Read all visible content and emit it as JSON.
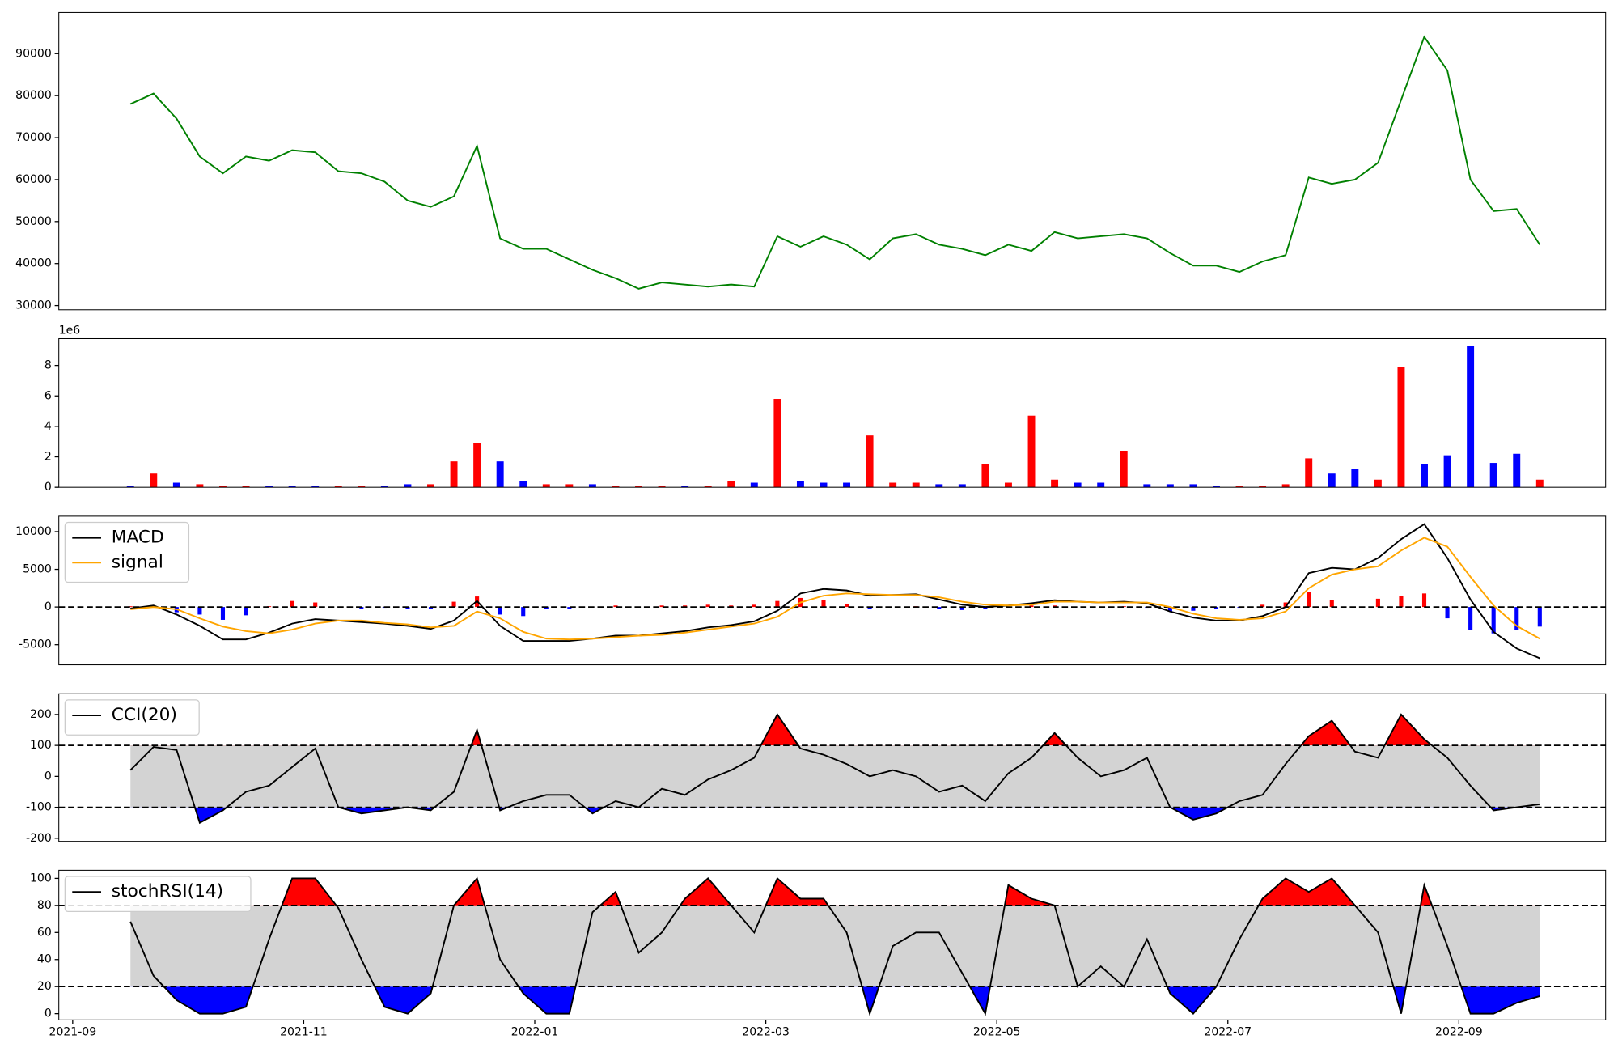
{
  "chart_data": [
    {
      "type": "line",
      "x": [
        0.5,
        0.7,
        0.9,
        1.1,
        1.3,
        1.5,
        1.7,
        1.9,
        2.1,
        2.3,
        2.5,
        2.7,
        2.9,
        3.1,
        3.3,
        3.5,
        3.7,
        3.9,
        4.1,
        4.3,
        4.5,
        4.7,
        4.9,
        5.1,
        5.3,
        5.5,
        5.7,
        5.9,
        6.1,
        6.3,
        6.5,
        6.7,
        6.9,
        7.1,
        7.3,
        7.5,
        7.7,
        7.9,
        8.1,
        8.3,
        8.5,
        8.7,
        8.9,
        9.1,
        9.3,
        9.5,
        9.7,
        9.9,
        10.1,
        10.3,
        10.5,
        10.7,
        10.9,
        11.1,
        11.3,
        11.5,
        11.7,
        11.9,
        12.1,
        12.3,
        12.5,
        12.7
      ],
      "values": [
        78000,
        80500,
        74500,
        65500,
        61500,
        65500,
        64500,
        67000,
        66500,
        62000,
        61500,
        59500,
        55000,
        53500,
        56000,
        68000,
        46000,
        43500,
        43500,
        41000,
        38500,
        36500,
        34000,
        35500,
        35000,
        34500,
        35000,
        34500,
        46500,
        44000,
        46500,
        44500,
        41000,
        46000,
        47000,
        44500,
        43500,
        42000,
        44500,
        43000,
        47500,
        46000,
        46500,
        47000,
        46000,
        42500,
        39500,
        39500,
        38000,
        40500,
        42000,
        60500,
        59000,
        60000,
        64000,
        79000,
        94000,
        86000,
        60000,
        52500,
        53000,
        44500
      ],
      "color": "green",
      "xlim": [
        -0.12,
        13.27
      ],
      "ylim": [
        29000,
        99800
      ],
      "yticks": [
        30000,
        40000,
        50000,
        60000,
        70000,
        80000,
        90000
      ]
    },
    {
      "type": "bar",
      "x": [
        0.5,
        0.7,
        0.9,
        1.1,
        1.3,
        1.5,
        1.7,
        1.9,
        2.1,
        2.3,
        2.5,
        2.7,
        2.9,
        3.1,
        3.3,
        3.5,
        3.7,
        3.9,
        4.1,
        4.3,
        4.5,
        4.7,
        4.9,
        5.1,
        5.3,
        5.5,
        5.7,
        5.9,
        6.1,
        6.3,
        6.5,
        6.7,
        6.9,
        7.1,
        7.3,
        7.5,
        7.7,
        7.9,
        8.1,
        8.3,
        8.5,
        8.7,
        8.9,
        9.1,
        9.3,
        9.5,
        9.7,
        9.9,
        10.1,
        10.3,
        10.5,
        10.7,
        10.9,
        11.1,
        11.3,
        11.5,
        11.7,
        11.9,
        12.1,
        12.3,
        12.5,
        12.7
      ],
      "values": [
        0.1,
        0.9,
        0.3,
        0.2,
        0.1,
        0.1,
        0.1,
        0.1,
        0.1,
        0.1,
        0.1,
        0.1,
        0.2,
        0.2,
        1.7,
        2.9,
        1.7,
        0.4,
        0.2,
        0.2,
        0.2,
        0.1,
        0.1,
        0.1,
        0.1,
        0.1,
        0.4,
        0.3,
        5.8,
        0.4,
        0.3,
        0.3,
        3.4,
        0.3,
        0.3,
        0.2,
        0.2,
        1.5,
        0.3,
        4.7,
        0.5,
        0.3,
        0.3,
        2.4,
        0.2,
        0.2,
        0.2,
        0.1,
        0.1,
        0.1,
        0.2,
        1.9,
        0.9,
        1.2,
        0.5,
        7.9,
        1.5,
        2.1,
        9.3,
        1.6,
        2.2,
        0.5
      ],
      "colors": [
        "blue",
        "red",
        "blue",
        "red",
        "red",
        "red",
        "blue",
        "blue",
        "blue",
        "red",
        "red",
        "blue",
        "blue",
        "red",
        "red",
        "red",
        "blue",
        "blue",
        "red",
        "red",
        "blue",
        "red",
        "red",
        "red",
        "blue",
        "red",
        "red",
        "blue",
        "red",
        "blue",
        "blue",
        "blue",
        "red",
        "red",
        "red",
        "blue",
        "blue",
        "red",
        "red",
        "red",
        "red",
        "blue",
        "blue",
        "red",
        "blue",
        "blue",
        "blue",
        "blue",
        "red",
        "red",
        "red",
        "red",
        "blue",
        "blue",
        "red",
        "red",
        "blue",
        "blue",
        "blue",
        "blue",
        "blue",
        "red"
      ],
      "offset_label": "1e6",
      "xlim": [
        -0.12,
        13.27
      ],
      "ylim": [
        0,
        9.76
      ],
      "yticks": [
        0,
        2,
        4,
        6,
        8
      ]
    },
    {
      "type": "macd",
      "x": [
        0.5,
        0.7,
        0.9,
        1.1,
        1.3,
        1.5,
        1.7,
        1.9,
        2.1,
        2.3,
        2.5,
        2.7,
        2.9,
        3.1,
        3.3,
        3.5,
        3.7,
        3.9,
        4.1,
        4.3,
        4.5,
        4.7,
        4.9,
        5.1,
        5.3,
        5.5,
        5.7,
        5.9,
        6.1,
        6.3,
        6.5,
        6.7,
        6.9,
        7.1,
        7.3,
        7.5,
        7.7,
        7.9,
        8.1,
        8.3,
        8.5,
        8.7,
        8.9,
        9.1,
        9.3,
        9.5,
        9.7,
        9.9,
        10.1,
        10.3,
        10.5,
        10.7,
        10.9,
        11.1,
        11.3,
        11.5,
        11.7,
        11.9,
        12.1,
        12.3,
        12.5,
        12.7
      ],
      "series": [
        {
          "name": "MACD",
          "color": "black",
          "values": [
            -200,
            200,
            -1000,
            -2500,
            -4300,
            -4300,
            -3400,
            -2200,
            -1600,
            -1800,
            -2000,
            -2200,
            -2500,
            -2900,
            -1800,
            800,
            -2500,
            -4500,
            -4500,
            -4500,
            -4200,
            -3800,
            -3800,
            -3500,
            -3200,
            -2700,
            -2400,
            -1900,
            -500,
            1800,
            2400,
            2200,
            1500,
            1600,
            1700,
            1000,
            300,
            0,
            200,
            500,
            900,
            700,
            600,
            700,
            500,
            -600,
            -1400,
            -1800,
            -1800,
            -1200,
            0,
            4500,
            5200,
            5000,
            6500,
            9000,
            11000,
            6500,
            1000,
            -3300,
            -5500,
            -6800
          ]
        },
        {
          "name": "signal",
          "color": "orange",
          "values": [
            -300,
            0,
            -300,
            -1500,
            -2600,
            -3200,
            -3500,
            -3000,
            -2200,
            -1800,
            -1800,
            -2100,
            -2300,
            -2700,
            -2500,
            -600,
            -1500,
            -3300,
            -4200,
            -4300,
            -4200,
            -4000,
            -3800,
            -3700,
            -3400,
            -3000,
            -2600,
            -2200,
            -1300,
            600,
            1500,
            1800,
            1700,
            1600,
            1600,
            1300,
            700,
            300,
            200,
            300,
            700,
            700,
            600,
            600,
            600,
            0,
            -900,
            -1500,
            -1700,
            -1500,
            -600,
            2500,
            4300,
            5000,
            5400,
            7500,
            9200,
            8000,
            4000,
            200,
            -2500,
            -4200
          ]
        }
      ],
      "histogram": {
        "values": [
          100,
          200,
          -700,
          -1000,
          -1700,
          -1100,
          100,
          800,
          600,
          0,
          -200,
          -100,
          -200,
          -200,
          700,
          1400,
          -1000,
          -1200,
          -300,
          -200,
          0,
          200,
          0,
          200,
          200,
          300,
          200,
          300,
          800,
          1200,
          900,
          400,
          -200,
          0,
          100,
          -300,
          -400,
          -300,
          0,
          200,
          200,
          0,
          0,
          100,
          -100,
          -600,
          -500,
          -300,
          -100,
          300,
          600,
          2000,
          900,
          0,
          1100,
          1500,
          1800,
          -1500,
          -3000,
          -3500,
          -3000,
          -2600
        ],
        "positive_color": "red",
        "negative_color": "blue"
      },
      "reference_line": 0,
      "legend": "upper left",
      "xlim": [
        -0.12,
        13.27
      ],
      "ylim": [
        -7670,
        12050
      ],
      "yticks": [
        -5000,
        0,
        5000,
        10000
      ]
    },
    {
      "type": "band",
      "x": [
        0.5,
        0.7,
        0.9,
        1.1,
        1.3,
        1.5,
        1.7,
        1.9,
        2.1,
        2.3,
        2.5,
        2.7,
        2.9,
        3.1,
        3.3,
        3.5,
        3.7,
        3.9,
        4.1,
        4.3,
        4.5,
        4.7,
        4.9,
        5.1,
        5.3,
        5.5,
        5.7,
        5.9,
        6.1,
        6.3,
        6.5,
        6.7,
        6.9,
        7.1,
        7.3,
        7.5,
        7.7,
        7.9,
        8.1,
        8.3,
        8.5,
        8.7,
        8.9,
        9.1,
        9.3,
        9.5,
        9.7,
        9.9,
        10.1,
        10.3,
        10.5,
        10.7,
        10.9,
        11.1,
        11.3,
        11.5,
        11.7,
        11.9,
        12.1,
        12.3,
        12.5,
        12.7
      ],
      "series": [
        {
          "name": "CCI(20)",
          "color": "black",
          "values": [
            20,
            95,
            85,
            -150,
            -110,
            -50,
            -30,
            30,
            90,
            -100,
            -120,
            -110,
            -100,
            -110,
            -50,
            150,
            -110,
            -80,
            -60,
            -60,
            -120,
            -80,
            -100,
            -40,
            -60,
            -10,
            20,
            60,
            200,
            90,
            70,
            40,
            0,
            20,
            0,
            -50,
            -30,
            -80,
            10,
            60,
            140,
            60,
            0,
            20,
            60,
            -100,
            -140,
            -120,
            -80,
            -60,
            40,
            130,
            180,
            80,
            60,
            200,
            120,
            60,
            -30,
            -110,
            -100,
            -90
          ]
        }
      ],
      "upper": 100,
      "lower": -100,
      "band_color": "lightgray",
      "above_color": "red",
      "below_color": "blue",
      "legend": "upper left",
      "xlim": [
        -0.12,
        13.27
      ],
      "ylim": [
        -210,
        267
      ],
      "yticks": [
        -200,
        -100,
        0,
        100,
        200
      ]
    },
    {
      "type": "band",
      "x": [
        0.5,
        0.7,
        0.9,
        1.1,
        1.3,
        1.5,
        1.7,
        1.9,
        2.1,
        2.3,
        2.5,
        2.7,
        2.9,
        3.1,
        3.3,
        3.5,
        3.7,
        3.9,
        4.1,
        4.3,
        4.5,
        4.7,
        4.9,
        5.1,
        5.3,
        5.5,
        5.7,
        5.9,
        6.1,
        6.3,
        6.5,
        6.7,
        6.9,
        7.1,
        7.3,
        7.5,
        7.7,
        7.9,
        8.1,
        8.3,
        8.5,
        8.7,
        8.9,
        9.1,
        9.3,
        9.5,
        9.7,
        9.9,
        10.1,
        10.3,
        10.5,
        10.7,
        10.9,
        11.1,
        11.3,
        11.5,
        11.7,
        11.9,
        12.1,
        12.3,
        12.5,
        12.7
      ],
      "series": [
        {
          "name": "stochRSI(14)",
          "color": "black",
          "values": [
            68,
            28,
            10,
            0,
            0,
            5,
            55,
            100,
            100,
            78,
            40,
            5,
            0,
            15,
            80,
            100,
            40,
            15,
            0,
            0,
            75,
            90,
            45,
            60,
            85,
            100,
            80,
            60,
            100,
            85,
            85,
            60,
            0,
            50,
            60,
            60,
            30,
            0,
            95,
            85,
            80,
            20,
            35,
            20,
            55,
            15,
            0,
            20,
            55,
            85,
            100,
            90,
            100,
            80,
            60,
            0,
            95,
            50,
            0,
            0,
            8,
            13
          ]
        }
      ],
      "upper": 80,
      "lower": 20,
      "band_color": "lightgray",
      "above_color": "red",
      "below_color": "blue",
      "legend": "upper left",
      "xlim": [
        -0.12,
        13.27
      ],
      "ylim": [
        -4.6,
        106
      ],
      "yticks": [
        0,
        20,
        40,
        60,
        80,
        100
      ],
      "xticks": [
        {
          "value": 0,
          "label": "2021-09"
        },
        {
          "value": 2,
          "label": "2021-11"
        },
        {
          "value": 4,
          "label": "2022-01"
        },
        {
          "value": 6,
          "label": "2022-03"
        },
        {
          "value": 8,
          "label": "2022-05"
        },
        {
          "value": 10,
          "label": "2022-07"
        },
        {
          "value": 12,
          "label": "2022-09"
        }
      ]
    }
  ]
}
